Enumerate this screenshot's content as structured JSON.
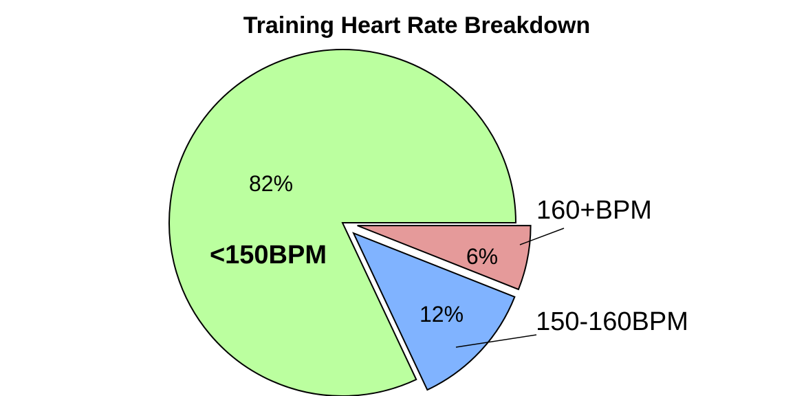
{
  "chart_data": {
    "type": "pie",
    "title": "Training Heart Rate Breakdown",
    "slices": [
      {
        "label": "<150BPM",
        "value": 82,
        "pct_label": "82%",
        "color": "#bbff9f",
        "label_placement": "inside",
        "exploded": false
      },
      {
        "label": "150-160BPM",
        "value": 12,
        "pct_label": "12%",
        "color": "#80b3ff",
        "label_placement": "outside",
        "exploded": true
      },
      {
        "label": "160+BPM",
        "value": 6,
        "pct_label": "6%",
        "color": "#e59a9a",
        "label_placement": "outside",
        "exploded": true
      }
    ],
    "start_angle_deg": 0,
    "direction": "counterclockwise"
  }
}
